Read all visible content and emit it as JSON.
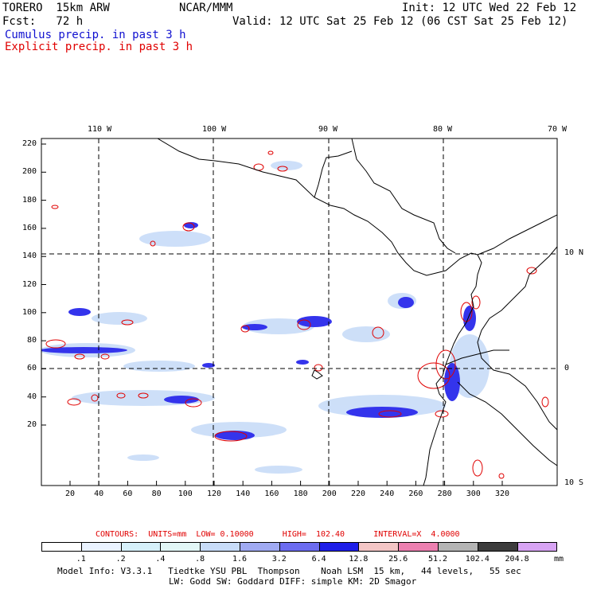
{
  "header": {
    "model": "TORERO  15km ARW",
    "org": "NCAR/MMM",
    "init": "Init: 12 UTC Wed 22 Feb 12",
    "fcst": "Fcst:   72 h",
    "valid": "Valid: 12 UTC Sat 25 Feb 12 (06 CST Sat 25 Feb 12)",
    "legend_cumulus": "Cumulus precip. in past 3 h",
    "legend_explicit": "Explicit precip. in past 3 h"
  },
  "map": {
    "top_lon_labels": [
      "110 W",
      "100 W",
      "90 W",
      "80 W",
      "70 W"
    ],
    "right_lat_labels": [
      "10 N",
      "0",
      "10 S"
    ],
    "y_ticks": [
      "220",
      "200",
      "180",
      "160",
      "140",
      "120",
      "100",
      "80",
      "60",
      "40",
      "20"
    ],
    "x_ticks": [
      "20",
      "40",
      "60",
      "80",
      "100",
      "120",
      "140",
      "160",
      "180",
      "200",
      "220",
      "240",
      "260",
      "280",
      "300",
      "320"
    ]
  },
  "contours_line": {
    "label": "CONTOURS:  UNITS=mm  LOW= 0.10000      HIGH=  102.40      INTERVAL=X  4.0000"
  },
  "colorbar": {
    "values": [
      ".1",
      ".2",
      ".4",
      ".8",
      "1.6",
      "3.2",
      "6.4",
      "12.8",
      "25.6",
      "51.2",
      "102.4",
      "204.8"
    ],
    "colors": [
      "#ffffff",
      "#eaf3ff",
      "#d6f0fa",
      "#e2f6f6",
      "#c8dcf8",
      "#a0aaf2",
      "#6c6cf0",
      "#1e1ee8",
      "#f4c6c6",
      "#ec80b0",
      "#b4b4b4",
      "#3c3c3c",
      "#d8a4f4"
    ],
    "unit": "mm"
  },
  "footer": {
    "line1": "Model Info: V3.3.1   Tiedtke YSU PBL  Thompson    Noah LSM  15 km,   44 levels,   55 sec",
    "line2": "LW: Godd SW: Goddard DIFF: simple KM: 2D Smagor"
  }
}
